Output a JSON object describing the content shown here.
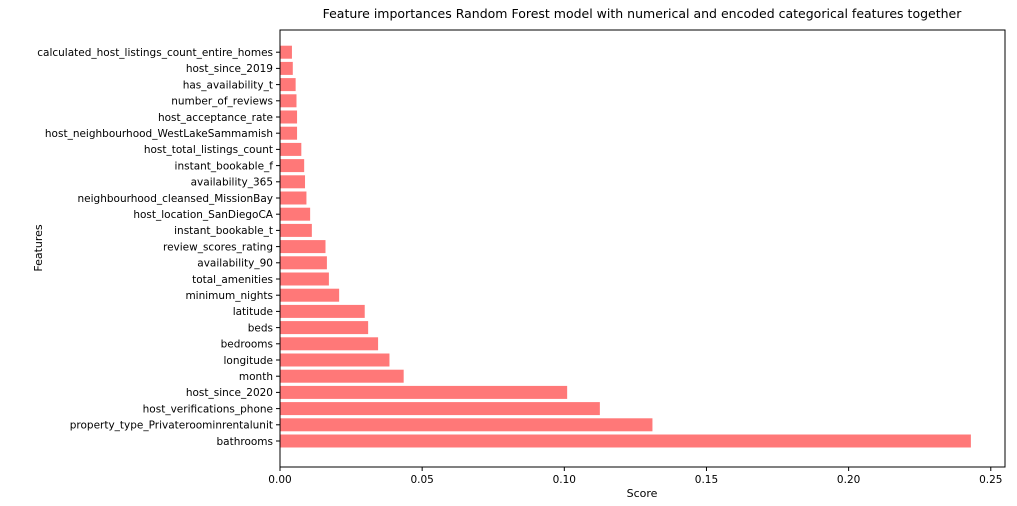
{
  "chart_data": {
    "type": "bar",
    "orientation": "horizontal",
    "title": "Feature importances Random Forest model with numerical and encoded categorical features together",
    "xlabel": "Score",
    "ylabel": "Features",
    "xlim": [
      0,
      0.255
    ],
    "xticks": [
      "0.00",
      "0.05",
      "0.10",
      "0.15",
      "0.20",
      "0.25"
    ],
    "bar_color": "#ff7878",
    "grid": false,
    "categories": [
      "bathrooms",
      "property_type_Privateroominrentalunit",
      "host_verifications_phone",
      "host_since_2020",
      "month",
      "longitude",
      "bedrooms",
      "beds",
      "latitude",
      "minimum_nights",
      "total_amenities",
      "availability_90",
      "review_scores_rating",
      "instant_bookable_t",
      "host_location_SanDiegoCA",
      "neighbourhood_cleansed_MissionBay",
      "availability_365",
      "instant_bookable_f",
      "host_total_listings_count",
      "host_neighbourhood_WestLakeSammamish",
      "host_acceptance_rate",
      "number_of_reviews",
      "has_availability_t",
      "host_since_2019",
      "calculated_host_listings_count_entire_homes"
    ],
    "values": [
      0.243,
      0.131,
      0.1125,
      0.101,
      0.0435,
      0.0385,
      0.0345,
      0.031,
      0.0298,
      0.0208,
      0.0172,
      0.0165,
      0.016,
      0.0112,
      0.0106,
      0.0093,
      0.0088,
      0.0085,
      0.0075,
      0.006,
      0.006,
      0.0058,
      0.0055,
      0.0045,
      0.0042
    ]
  }
}
